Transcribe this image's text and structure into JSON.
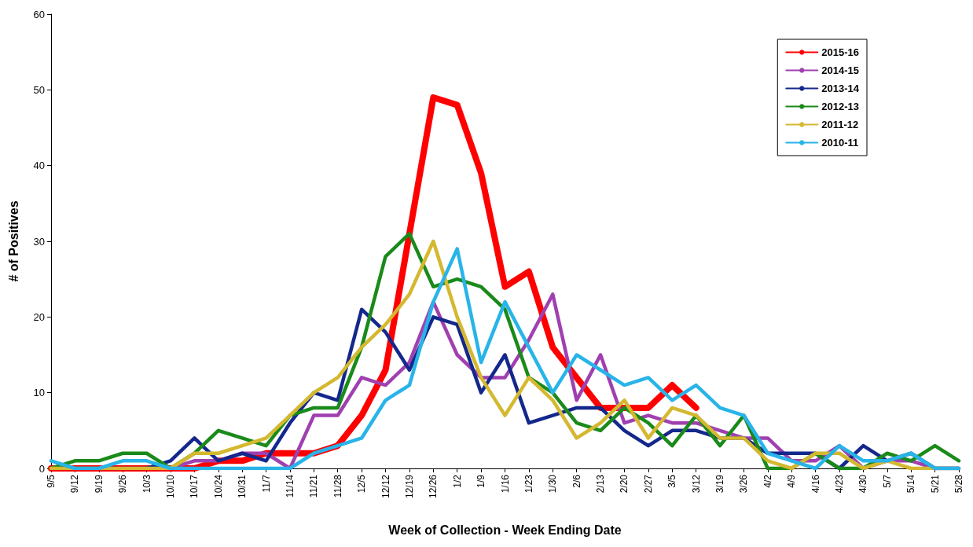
{
  "chart_data": {
    "type": "line",
    "xlabel": "Week of Collection - Week Ending Date",
    "ylabel": "# of Positives",
    "categories": [
      "9/5",
      "9/12",
      "9/19",
      "9/26",
      "10/3",
      "10/10",
      "10/17",
      "10/24",
      "10/31",
      "11/7",
      "11/14",
      "11/21",
      "11/28",
      "12/5",
      "12/12",
      "12/19",
      "12/26",
      "1/2",
      "1/9",
      "1/16",
      "1/23",
      "1/30",
      "2/6",
      "2/13",
      "2/20",
      "2/27",
      "3/5",
      "3/12",
      "3/19",
      "3/26",
      "4/2",
      "4/9",
      "4/16",
      "4/23",
      "4/30",
      "5/7",
      "5/14",
      "5/21",
      "5/28"
    ],
    "series": [
      {
        "name": "2015-16",
        "color": "#ff0000",
        "values": [
          0,
          0,
          0,
          0,
          0,
          0,
          0,
          1,
          1,
          2,
          2,
          2,
          3,
          7,
          13,
          31,
          49,
          48,
          39,
          24,
          26,
          16,
          12,
          8,
          8,
          8,
          11,
          8,
          null,
          null,
          null,
          null,
          null,
          null,
          null,
          null,
          null,
          null,
          null
        ]
      },
      {
        "name": "2014-15",
        "color": "#a040b0",
        "values": [
          null,
          null,
          null,
          null,
          0,
          0,
          1,
          1,
          2,
          2,
          0,
          7,
          7,
          12,
          11,
          14,
          22,
          15,
          12,
          12,
          17,
          23,
          9,
          15,
          6,
          7,
          6,
          6,
          5,
          4,
          4,
          1,
          1,
          3,
          0,
          1,
          1,
          0,
          0
        ]
      },
      {
        "name": "2013-14",
        "color": "#14288c",
        "values": [
          0,
          0,
          0,
          0,
          0,
          1,
          4,
          1,
          2,
          1,
          6,
          10,
          9,
          21,
          18,
          13,
          20,
          19,
          10,
          15,
          6,
          7,
          8,
          8,
          5,
          3,
          5,
          5,
          4,
          4,
          2,
          2,
          2,
          0,
          3,
          1,
          2,
          0,
          0
        ]
      },
      {
        "name": "2012-13",
        "color": "#1a8a1a",
        "values": [
          0,
          1,
          1,
          2,
          2,
          0,
          2,
          5,
          4,
          3,
          7,
          8,
          8,
          16,
          28,
          31,
          24,
          25,
          24,
          21,
          12,
          10,
          6,
          5,
          8,
          6,
          3,
          7,
          3,
          7,
          0,
          0,
          2,
          0,
          0,
          2,
          1,
          3,
          1
        ]
      },
      {
        "name": "2011-12",
        "color": "#d4b830",
        "values": [
          0,
          0,
          0,
          0,
          0,
          0,
          2,
          2,
          3,
          4,
          7,
          10,
          12,
          16,
          19,
          23,
          30,
          20,
          12,
          7,
          12,
          9,
          4,
          6,
          9,
          4,
          8,
          7,
          4,
          4,
          1,
          0,
          2,
          2,
          0,
          1,
          0,
          0,
          0
        ]
      },
      {
        "name": "2010-11",
        "color": "#28b4e8",
        "values": [
          1,
          0,
          0,
          1,
          1,
          0,
          0,
          0,
          0,
          0,
          0,
          2,
          3,
          4,
          9,
          11,
          22,
          29,
          14,
          22,
          16,
          10,
          15,
          13,
          11,
          12,
          9,
          11,
          8,
          7,
          2,
          1,
          0,
          3,
          1,
          1,
          2,
          0,
          0
        ]
      }
    ],
    "ylim": [
      0,
      60
    ],
    "yticks": [
      0,
      10,
      20,
      30,
      40,
      50,
      60
    ],
    "grid": false,
    "legend": "top right",
    "marker": "none",
    "line_style": "solid"
  }
}
